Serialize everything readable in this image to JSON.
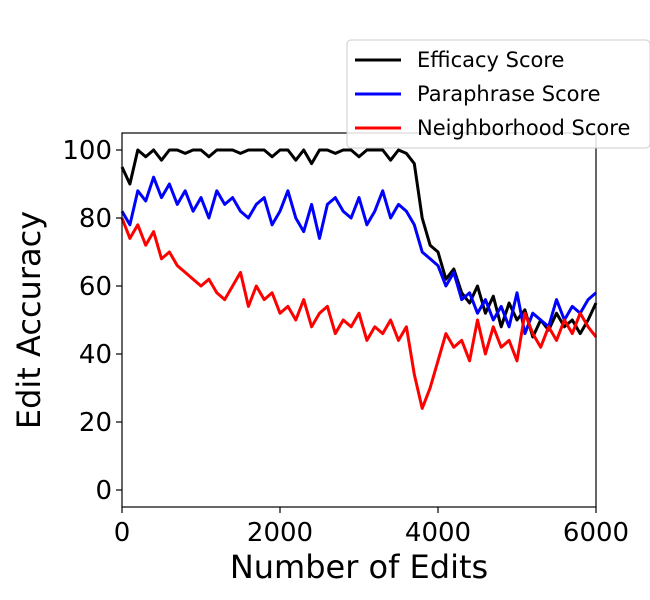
{
  "chart_data": {
    "type": "line",
    "xlabel": "Number of Edits",
    "ylabel": "Edit Accuracy",
    "xlim": [
      0,
      6000
    ],
    "ylim": [
      -5,
      105
    ],
    "xticks": [
      0,
      2000,
      4000,
      6000
    ],
    "yticks": [
      0,
      20,
      40,
      60,
      80,
      100
    ],
    "grid": false,
    "legend": "top-right",
    "series": [
      {
        "name": "Efficacy Score",
        "color": "#000000",
        "x": [
          0,
          100,
          200,
          300,
          400,
          500,
          600,
          700,
          800,
          900,
          1000,
          1100,
          1200,
          1300,
          1400,
          1500,
          1600,
          1700,
          1800,
          1900,
          2000,
          2100,
          2200,
          2300,
          2400,
          2500,
          2600,
          2700,
          2800,
          2900,
          3000,
          3100,
          3200,
          3300,
          3400,
          3500,
          3600,
          3700,
          3800,
          3900,
          4000,
          4100,
          4200,
          4300,
          4400,
          4500,
          4600,
          4700,
          4800,
          4900,
          5000,
          5100,
          5200,
          5300,
          5400,
          5500,
          5600,
          5700,
          5800,
          5900,
          6000
        ],
        "values": [
          95,
          90,
          100,
          98,
          100,
          97,
          100,
          100,
          99,
          100,
          100,
          98,
          100,
          100,
          100,
          99,
          100,
          100,
          100,
          98,
          100,
          100,
          97,
          100,
          96,
          100,
          100,
          99,
          100,
          100,
          98,
          100,
          100,
          100,
          97,
          100,
          99,
          96,
          80,
          72,
          70,
          62,
          65,
          58,
          55,
          60,
          52,
          57,
          48,
          55,
          50,
          53,
          45,
          50,
          47,
          52,
          48,
          50,
          46,
          50,
          55
        ]
      },
      {
        "name": "Paraphrase Score",
        "color": "#0000ff",
        "x": [
          0,
          100,
          200,
          300,
          400,
          500,
          600,
          700,
          800,
          900,
          1000,
          1100,
          1200,
          1300,
          1400,
          1500,
          1600,
          1700,
          1800,
          1900,
          2000,
          2100,
          2200,
          2300,
          2400,
          2500,
          2600,
          2700,
          2800,
          2900,
          3000,
          3100,
          3200,
          3300,
          3400,
          3500,
          3600,
          3700,
          3800,
          3900,
          4000,
          4100,
          4200,
          4300,
          4400,
          4500,
          4600,
          4700,
          4800,
          4900,
          5000,
          5100,
          5200,
          5300,
          5400,
          5500,
          5600,
          5700,
          5800,
          5900,
          6000
        ],
        "values": [
          82,
          78,
          88,
          85,
          92,
          86,
          90,
          84,
          88,
          82,
          86,
          80,
          88,
          84,
          86,
          82,
          80,
          84,
          86,
          78,
          82,
          88,
          80,
          76,
          84,
          74,
          84,
          86,
          82,
          80,
          86,
          78,
          82,
          88,
          80,
          84,
          82,
          78,
          70,
          68,
          66,
          60,
          64,
          56,
          58,
          52,
          56,
          50,
          54,
          48,
          58,
          46,
          52,
          50,
          48,
          56,
          50,
          54,
          52,
          56,
          58
        ]
      },
      {
        "name": "Neighborhood Score",
        "color": "#ff0000",
        "x": [
          0,
          100,
          200,
          300,
          400,
          500,
          600,
          700,
          800,
          900,
          1000,
          1100,
          1200,
          1300,
          1400,
          1500,
          1600,
          1700,
          1800,
          1900,
          2000,
          2100,
          2200,
          2300,
          2400,
          2500,
          2600,
          2700,
          2800,
          2900,
          3000,
          3100,
          3200,
          3300,
          3400,
          3500,
          3600,
          3700,
          3800,
          3900,
          4000,
          4100,
          4200,
          4300,
          4400,
          4500,
          4600,
          4700,
          4800,
          4900,
          5000,
          5100,
          5200,
          5300,
          5400,
          5500,
          5600,
          5700,
          5800,
          5900,
          6000
        ],
        "values": [
          80,
          74,
          78,
          72,
          76,
          68,
          70,
          66,
          64,
          62,
          60,
          62,
          58,
          56,
          60,
          64,
          54,
          60,
          56,
          58,
          52,
          54,
          50,
          56,
          48,
          52,
          54,
          46,
          50,
          48,
          52,
          44,
          48,
          46,
          50,
          44,
          48,
          34,
          24,
          30,
          38,
          46,
          42,
          44,
          38,
          50,
          40,
          48,
          42,
          44,
          38,
          52,
          46,
          42,
          48,
          44,
          50,
          46,
          52,
          48,
          45
        ]
      }
    ]
  }
}
